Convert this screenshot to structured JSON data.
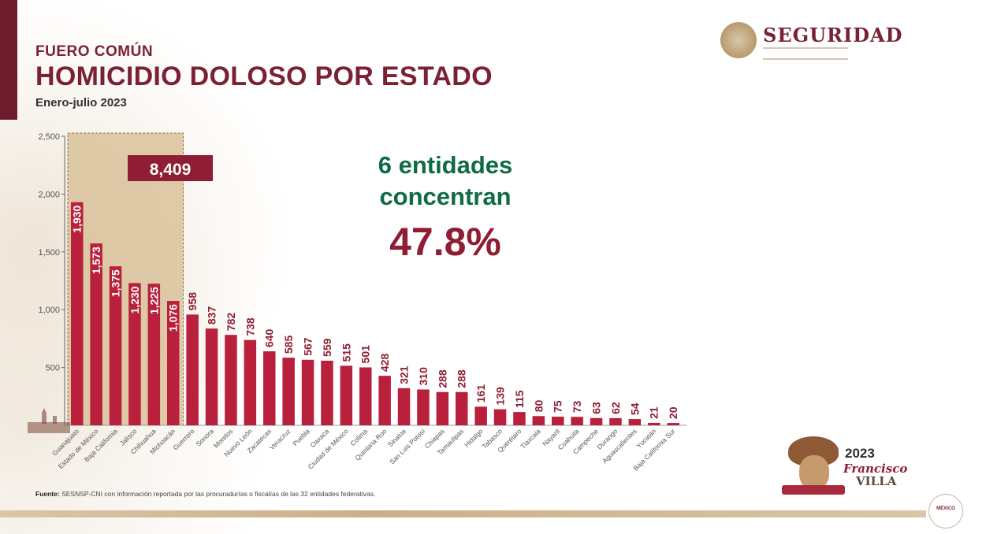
{
  "header": {
    "kicker": "FUERO COMÚN",
    "title": "HOMICIDIO DOLOSO POR ESTADO",
    "subtitle": "Enero-julio 2023"
  },
  "logo": {
    "name": "SEGURIDAD"
  },
  "headline": {
    "line1": "6 entidades",
    "line2": "concentran",
    "percent": "47.8%"
  },
  "highlight": {
    "total": "8,409",
    "count": 6
  },
  "source": {
    "label": "Fuente:",
    "text": "SESNSP-CNI con información reportada por las procuradurías o fiscalías de las 32 entidades federativas."
  },
  "branding": {
    "year": "2023",
    "name_line1": "Francisco",
    "name_line2": "VILLA",
    "gob_badge": "MÉXICO"
  },
  "colors": {
    "bar": "#b8203c",
    "bar_dark": "#8f1d33",
    "title": "#7a2233",
    "accent_green": "#0f6b46",
    "highlight_fill": "#d9c29a"
  },
  "chart_data": {
    "type": "bar",
    "categories": [
      "Guanajuato",
      "Estado de México",
      "Baja California",
      "Jalisco",
      "Chihuahua",
      "Michoacán",
      "Guerrero",
      "Sonora",
      "Morelos",
      "Nuevo León",
      "Zacatecas",
      "Veracruz",
      "Puebla",
      "Oaxaca",
      "Ciudad de México",
      "Colima",
      "Quintana Roo",
      "Sinaloa",
      "San Luis Potosí",
      "Chiapas",
      "Tamaulipas",
      "Hidalgo",
      "Tabasco",
      "Querétaro",
      "Tlaxcala",
      "Nayarit",
      "Coahuila",
      "Campeche",
      "Durango",
      "Aguascalientes",
      "Yucatán",
      "Baja California Sur"
    ],
    "values": [
      1930,
      1573,
      1375,
      1230,
      1225,
      1076,
      958,
      837,
      782,
      738,
      640,
      585,
      567,
      559,
      515,
      501,
      428,
      321,
      310,
      288,
      288,
      161,
      139,
      115,
      80,
      75,
      73,
      63,
      62,
      54,
      21,
      20
    ],
    "value_labels": [
      "1,930",
      "1,573",
      "1,375",
      "1,230",
      "1,225",
      "1,076",
      "958",
      "837",
      "782",
      "738",
      "640",
      "585",
      "567",
      "559",
      "515",
      "501",
      "428",
      "321",
      "310",
      "288",
      "288",
      "161",
      "139",
      "115",
      "80",
      "75",
      "73",
      "63",
      "62",
      "54",
      "21",
      "20"
    ],
    "yticks": [
      "500",
      "1,000",
      "1,500",
      "2,000",
      "2,500"
    ],
    "ytick_values": [
      500,
      1000,
      1500,
      2000,
      2500
    ],
    "ylim": [
      0,
      2500
    ],
    "grid": false,
    "legend": "none"
  }
}
